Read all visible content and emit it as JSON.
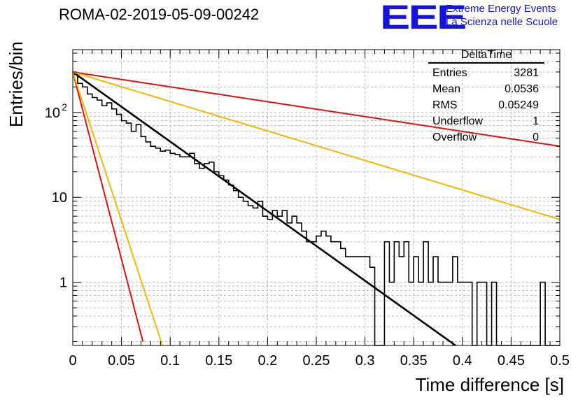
{
  "title": "ROMA-02-2019-05-09-00242",
  "logo": {
    "mark": "EEE",
    "line1": "Extreme Energy Events",
    "line2": "La Scienza nelle Scuole",
    "color": "#1414d8"
  },
  "stats_box": {
    "title": "DeltaTime",
    "rows": [
      {
        "label": "Entries",
        "value": "3281"
      },
      {
        "label": "Mean",
        "value": "0.0536"
      },
      {
        "label": "RMS",
        "value": "0.05249"
      },
      {
        "label": "Underflow",
        "value": "1"
      },
      {
        "label": "Overflow",
        "value": "0"
      }
    ]
  },
  "chart_data": {
    "type": "histogram",
    "xlabel": "Time difference [s]",
    "ylabel": "Entries/bin",
    "xlim": [
      0,
      0.5
    ],
    "ylim": [
      0.18,
      550
    ],
    "y_log": true,
    "grid": true,
    "x_ticks": [
      "0",
      "0.05",
      "0.1",
      "0.15",
      "0.2",
      "0.25",
      "0.3",
      "0.35",
      "0.4",
      "0.45",
      "0.5"
    ],
    "y_ticks": [
      {
        "value": 1,
        "label": "1"
      },
      {
        "value": 10,
        "label": "10"
      },
      {
        "value": 100,
        "label": "10",
        "exponent": "2"
      }
    ],
    "bin_width": 0.005,
    "histogram": {
      "color": "#000000",
      "values": [
        280,
        220,
        200,
        165,
        150,
        140,
        120,
        130,
        110,
        95,
        80,
        75,
        60,
        72,
        52,
        45,
        40,
        38,
        35,
        36,
        33,
        32,
        30,
        30,
        33,
        25,
        22,
        25,
        26,
        20,
        18,
        16,
        14,
        12,
        10,
        9,
        8,
        7.5,
        9,
        6,
        5.5,
        7,
        6,
        7,
        5,
        6,
        5,
        4,
        3,
        3,
        3.5,
        4,
        3.5,
        3,
        3,
        2.5,
        2,
        2,
        2,
        2,
        2,
        1.5,
        0,
        0,
        3,
        1,
        3,
        2,
        3,
        1,
        2,
        1,
        3,
        1,
        2,
        1,
        1,
        1,
        2,
        1,
        1,
        1,
        0,
        1,
        1,
        0,
        1,
        0,
        0,
        0,
        0,
        0,
        0,
        0,
        0,
        0,
        1,
        0,
        0,
        0
      ]
    },
    "series": [
      {
        "color": "#000000",
        "points": [
          [
            0,
            300
          ],
          [
            0.393,
            0.18
          ]
        ]
      },
      {
        "color": "#e01010",
        "points": [
          [
            0,
            300
          ],
          [
            0.5,
            40
          ]
        ]
      },
      {
        "color": "#e01010",
        "points": [
          [
            0,
            300
          ],
          [
            0.072,
            0.2
          ]
        ]
      },
      {
        "color": "#f2b800",
        "points": [
          [
            0,
            300
          ],
          [
            0.5,
            5.5
          ]
        ]
      },
      {
        "color": "#f2b800",
        "points": [
          [
            0,
            300
          ],
          [
            0.092,
            0.18
          ]
        ]
      }
    ]
  }
}
